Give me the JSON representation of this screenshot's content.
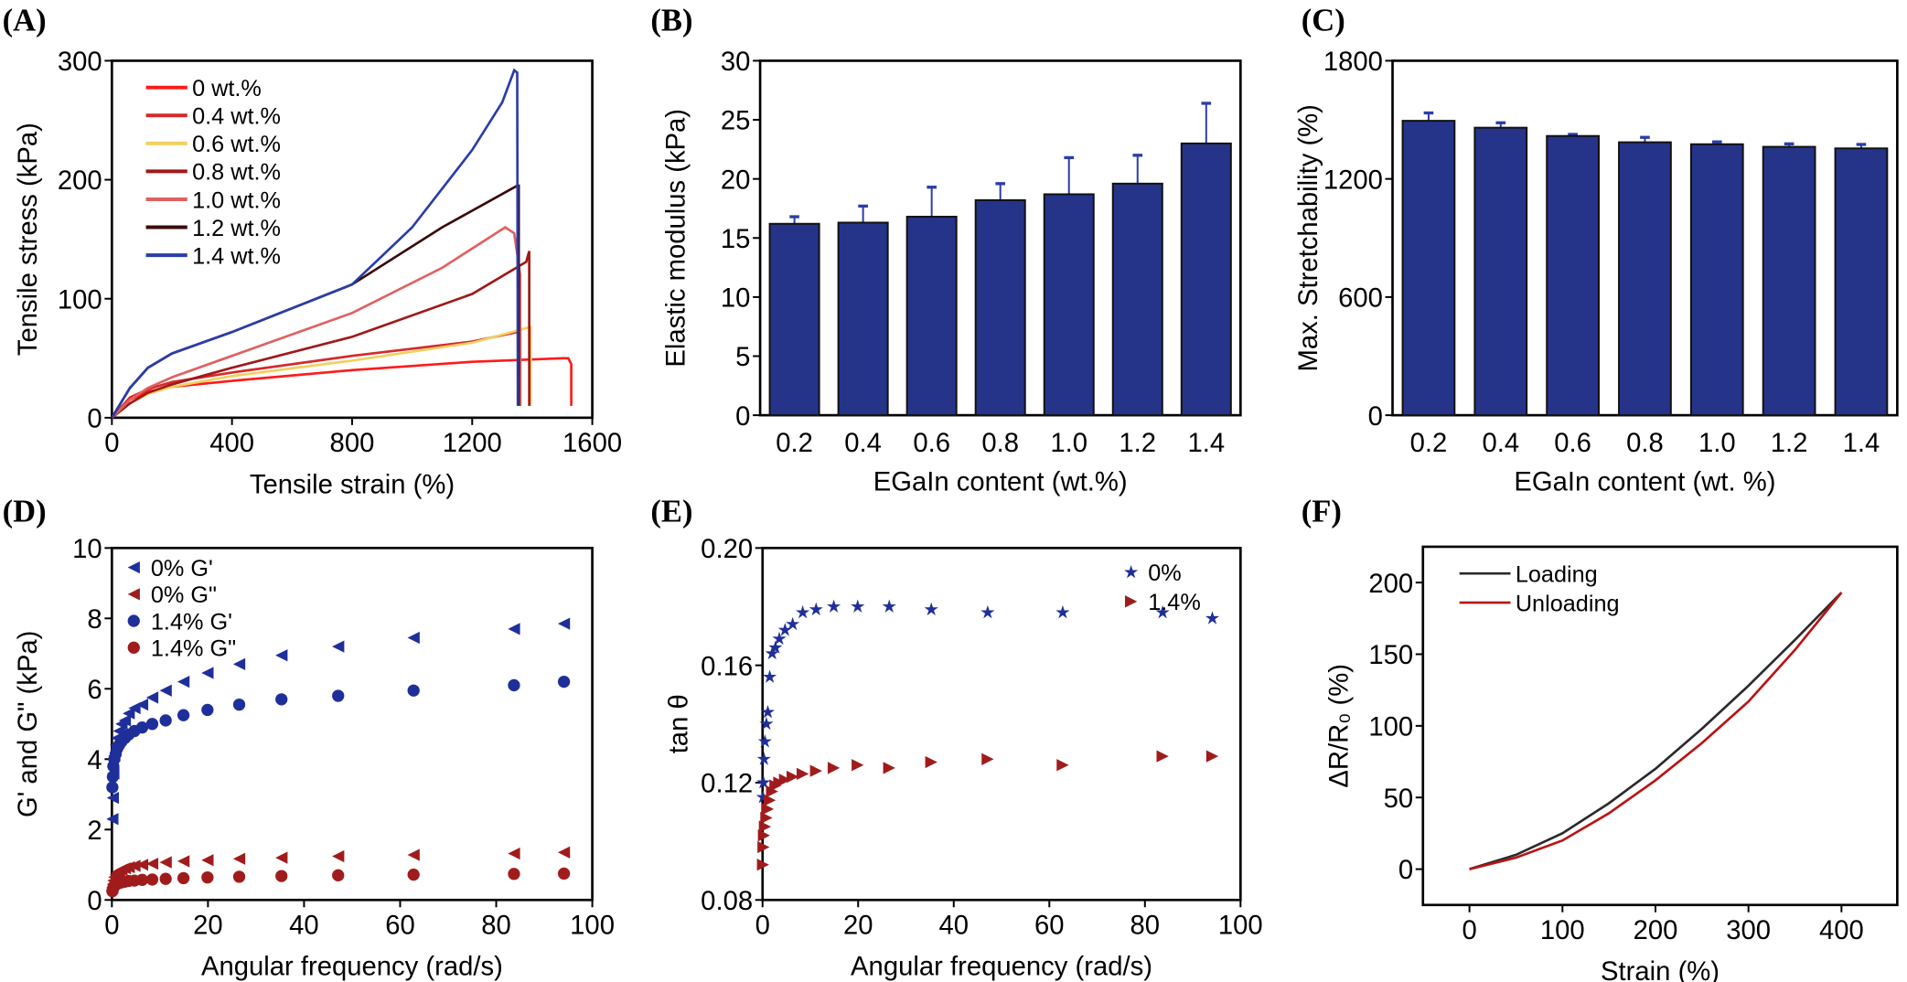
{
  "chart_data": [
    {
      "panel": "(A)",
      "type": "line",
      "xlabel": "Tensile strain (%)",
      "ylabel": "Tensile stress (kPa)",
      "xlim": [
        0,
        1600
      ],
      "ylim": [
        0,
        300
      ],
      "xticks": [
        "0",
        "400",
        "800",
        "1200",
        "1600"
      ],
      "yticks": [
        "0",
        "100",
        "200",
        "300"
      ],
      "legend_position": "top-left",
      "series": [
        {
          "name": "0 wt.%",
          "color": "#ff1a1a",
          "x": [
            0,
            60,
            120,
            200,
            400,
            800,
            1200,
            1500,
            1520,
            1530,
            1530
          ],
          "y": [
            0,
            15,
            22,
            26,
            31,
            40,
            47,
            50,
            50,
            45,
            10
          ]
        },
        {
          "name": "0.4 wt.%",
          "color": "#d42a2a",
          "x": [
            0,
            60,
            120,
            200,
            400,
            800,
            1200,
            1350,
            1360,
            1360
          ],
          "y": [
            0,
            17,
            24,
            30,
            38,
            52,
            64,
            72,
            72,
            10
          ]
        },
        {
          "name": "0.6 wt.%",
          "color": "#f2d060",
          "x": [
            0,
            60,
            120,
            200,
            400,
            800,
            1200,
            1390,
            1395,
            1395
          ],
          "y": [
            0,
            12,
            20,
            26,
            35,
            48,
            63,
            76,
            76,
            10
          ]
        },
        {
          "name": "0.8 wt.%",
          "color": "#a01818",
          "x": [
            0,
            60,
            120,
            200,
            400,
            800,
            1200,
            1380,
            1390,
            1390
          ],
          "y": [
            0,
            12,
            21,
            28,
            42,
            68,
            104,
            131,
            140,
            10
          ]
        },
        {
          "name": "1.0 wt.%",
          "color": "#e06060",
          "x": [
            0,
            60,
            120,
            200,
            400,
            800,
            1100,
            1310,
            1340,
            1360,
            1360
          ],
          "y": [
            0,
            15,
            25,
            34,
            52,
            88,
            126,
            160,
            155,
            120,
            10
          ]
        },
        {
          "name": "1.2 wt.%",
          "color": "#3a0a0a",
          "x": [
            0,
            60,
            120,
            200,
            400,
            800,
            1100,
            1300,
            1350,
            1355,
            1355
          ],
          "y": [
            0,
            25,
            42,
            54,
            72,
            112,
            160,
            188,
            195,
            195,
            10
          ]
        },
        {
          "name": "1.4 wt.%",
          "color": "#2a3da8",
          "x": [
            0,
            60,
            120,
            200,
            400,
            800,
            1000,
            1200,
            1300,
            1340,
            1350,
            1352
          ],
          "y": [
            0,
            25,
            42,
            54,
            72,
            112,
            160,
            225,
            265,
            292,
            290,
            10
          ]
        }
      ]
    },
    {
      "panel": "(B)",
      "type": "bar",
      "xlabel": "EGaIn content (wt.%)",
      "ylabel": "Elastic modulus (kPa)",
      "categories": [
        "0.2",
        "0.4",
        "0.6",
        "0.8",
        "1.0",
        "1.2",
        "1.4"
      ],
      "values": [
        16.2,
        16.3,
        16.8,
        18.2,
        18.7,
        19.6,
        23.0
      ],
      "errors": [
        0.6,
        1.4,
        2.5,
        1.4,
        3.1,
        2.4,
        3.4
      ],
      "ylim": [
        0,
        30
      ],
      "yticks": [
        "0",
        "5",
        "10",
        "15",
        "20",
        "25",
        "30"
      ],
      "bar_color": "#253489"
    },
    {
      "panel": "(C)",
      "type": "bar",
      "xlabel": "EGaIn content (wt. %)",
      "ylabel": "Max. Stretchability (%)",
      "categories": [
        "0.2",
        "0.4",
        "0.6",
        "0.8",
        "1.0",
        "1.2",
        "1.4"
      ],
      "values": [
        1495,
        1460,
        1418,
        1386,
        1376,
        1363,
        1355
      ],
      "errors": [
        40,
        25,
        8,
        25,
        12,
        15,
        20
      ],
      "ylim": [
        0,
        1800
      ],
      "yticks": [
        "0",
        "600",
        "1200",
        "1800"
      ],
      "bar_color": "#253489"
    },
    {
      "panel": "(D)",
      "type": "scatter",
      "xlabel": "Angular frequency (rad/s)",
      "ylabel": "G' and G\" (kPa)",
      "xlim": [
        0,
        100
      ],
      "ylim": [
        0,
        10
      ],
      "xticks": [
        "0",
        "20",
        "40",
        "60",
        "80",
        "100"
      ],
      "yticks": [
        "0",
        "2",
        "4",
        "6",
        "8",
        "10"
      ],
      "legend_position": "top-left",
      "x": [
        0.1,
        0.2,
        0.3,
        0.5,
        0.8,
        1.1,
        1.5,
        2.0,
        2.7,
        3.5,
        4.7,
        6.3,
        8.4,
        11.2,
        14.9,
        19.9,
        26.5,
        35.3,
        47.1,
        62.8,
        83.7,
        94.1
      ],
      "series": [
        {
          "name": "0% G'",
          "marker": "triangle-left",
          "color": "#1f2f9a",
          "values": [
            2.3,
            2.9,
            3.6,
            4.1,
            4.4,
            4.6,
            4.8,
            5.0,
            5.1,
            5.3,
            5.45,
            5.55,
            5.75,
            5.95,
            6.2,
            6.45,
            6.7,
            6.95,
            7.2,
            7.45,
            7.7,
            7.85
          ]
        },
        {
          "name": "0% G\"",
          "marker": "triangle-left",
          "color": "#a01c1c",
          "values": [
            0.35,
            0.45,
            0.55,
            0.65,
            0.72,
            0.78,
            0.82,
            0.86,
            0.9,
            0.93,
            0.97,
            1.0,
            1.03,
            1.07,
            1.1,
            1.13,
            1.17,
            1.2,
            1.24,
            1.28,
            1.32,
            1.35
          ]
        },
        {
          "name": "1.4% G'",
          "marker": "circle",
          "color": "#1f2f9a",
          "values": [
            3.2,
            3.5,
            3.8,
            4.0,
            4.15,
            4.3,
            4.4,
            4.5,
            4.6,
            4.7,
            4.8,
            4.9,
            5.0,
            5.1,
            5.25,
            5.4,
            5.55,
            5.7,
            5.8,
            5.95,
            6.1,
            6.2
          ]
        },
        {
          "name": "1.4% G\"",
          "marker": "circle",
          "color": "#a01c1c",
          "values": [
            0.25,
            0.3,
            0.35,
            0.4,
            0.43,
            0.46,
            0.48,
            0.5,
            0.52,
            0.54,
            0.55,
            0.57,
            0.58,
            0.6,
            0.62,
            0.64,
            0.66,
            0.68,
            0.7,
            0.72,
            0.74,
            0.75
          ]
        }
      ]
    },
    {
      "panel": "(E)",
      "type": "scatter",
      "xlabel": "Angular frequency (rad/s)",
      "ylabel": "tan θ",
      "xlim": [
        0,
        100
      ],
      "ylim": [
        0.08,
        0.2
      ],
      "xticks": [
        "0",
        "20",
        "40",
        "60",
        "80",
        "100"
      ],
      "yticks": [
        "0.08",
        "0.12",
        "0.16",
        "0.20"
      ],
      "legend_position": "top-right",
      "x": [
        0.1,
        0.2,
        0.3,
        0.5,
        0.8,
        1.1,
        1.5,
        2.0,
        2.7,
        3.5,
        4.7,
        6.3,
        8.4,
        11.2,
        14.9,
        19.9,
        26.5,
        35.3,
        47.1,
        62.8,
        83.7,
        94.1
      ],
      "series": [
        {
          "name": "0%",
          "marker": "star",
          "color": "#1f2f9a",
          "values": [
            0.115,
            0.12,
            0.128,
            0.134,
            0.14,
            0.144,
            0.156,
            0.164,
            0.166,
            0.169,
            0.172,
            0.174,
            0.178,
            0.179,
            0.18,
            0.18,
            0.18,
            0.179,
            0.178,
            0.178,
            0.178,
            0.176
          ]
        },
        {
          "name": "1.4%",
          "marker": "triangle-right",
          "color": "#a01c1c",
          "values": [
            0.092,
            0.098,
            0.102,
            0.105,
            0.108,
            0.111,
            0.114,
            0.117,
            0.119,
            0.12,
            0.121,
            0.122,
            0.123,
            0.124,
            0.125,
            0.126,
            0.125,
            0.127,
            0.128,
            0.126,
            0.129,
            0.129
          ]
        }
      ]
    },
    {
      "panel": "(F)",
      "type": "line",
      "xlabel": "Strain (%)",
      "ylabel": "ΔR/R₀ (%)",
      "xlim": [
        -50,
        460
      ],
      "ylim": [
        -25,
        225
      ],
      "xticks": [
        "0",
        "100",
        "200",
        "300",
        "400"
      ],
      "yticks": [
        "0",
        "50",
        "100",
        "150",
        "200"
      ],
      "legend_position": "top-left",
      "series": [
        {
          "name": "Loading",
          "color": "#2a2a2a",
          "x": [
            0,
            50,
            100,
            150,
            200,
            250,
            300,
            350,
            400
          ],
          "y": [
            0,
            10,
            25,
            46,
            70,
            98,
            128,
            160,
            193
          ]
        },
        {
          "name": "Unloading",
          "color": "#b81414",
          "x": [
            0,
            50,
            100,
            150,
            200,
            250,
            300,
            350,
            400
          ],
          "y": [
            0,
            8,
            20,
            39,
            62,
            88,
            117,
            153,
            193
          ]
        }
      ]
    }
  ]
}
